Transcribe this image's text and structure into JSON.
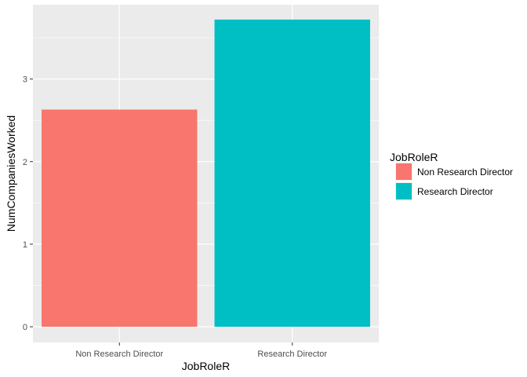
{
  "chart_data": {
    "type": "bar",
    "categories": [
      "Non Research Director",
      "Research Director"
    ],
    "values": [
      2.63,
      3.72
    ],
    "colors": [
      "#F8766D",
      "#00BFC4"
    ],
    "xlabel": "JobRoleR",
    "ylabel": "NumCompaniesWorked",
    "yticks": [
      0,
      1,
      2,
      3
    ],
    "ylim": [
      -0.19,
      3.9
    ],
    "grid": true,
    "panel_background": "#EBEBEB",
    "legend": {
      "title": "JobRoleR",
      "position": "right",
      "entries": [
        "Non Research Director",
        "Research Director"
      ]
    }
  }
}
